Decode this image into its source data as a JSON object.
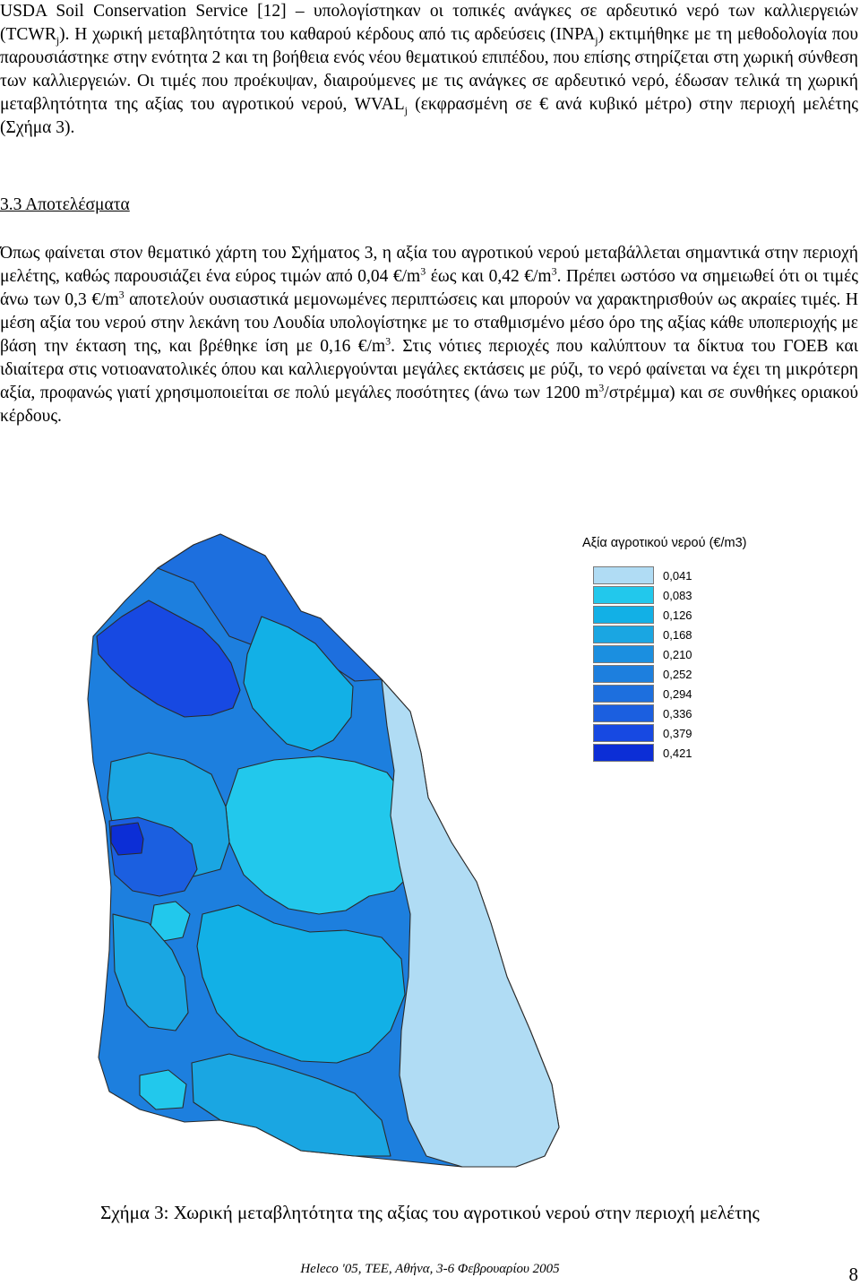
{
  "paragraph1": {
    "a": "USDA Soil Conservation Service [12] – υπολογίστηκαν οι τοπικές ανάγκες σε αρδευτικό νερό των καλλιεργειών (TCWR",
    "a_sub": "j",
    "b": "). Η χωρική μεταβλητότητα του καθαρού κέρδους από τις αρδεύσεις (INPA",
    "b_sub": "j",
    "c": ") εκτιμήθηκε με τη μεθοδολογία που παρουσιάστηκε στην ενότητα 2 και τη βοήθεια ενός νέου θεματικού επιπέδου, που επίσης στηρίζεται στη χωρική σύνθεση των καλλιεργειών. Οι τιμές που προέκυψαν, διαιρούμενες με τις ανάγκες σε αρδευτικό νερό, έδωσαν τελικά τη χωρική μεταβλητότητα της αξίας του αγροτικού νερού, WVAL",
    "c_sub": "j",
    "d": " (εκφρασμένη σε € ανά κυβικό μέτρο) στην περιοχή μελέτης (Σχήμα 3)."
  },
  "heading": "3.3 Αποτελέσματα",
  "paragraph2": {
    "a": "Όπως φαίνεται στον θεματικό χάρτη του Σχήματος 3, η αξία του αγροτικού νερού μεταβάλλεται σημαντικά στην περιοχή μελέτης, καθώς παρουσιάζει ένα εύρος τιμών από 0,04 €/m",
    "a_sup": "3",
    "b": " έως και 0,42 €/m",
    "b_sup": "3",
    "c": ". Πρέπει ωστόσο να σημειωθεί ότι οι τιμές άνω των 0,3 €/m",
    "c_sup": "3",
    "d": " αποτελούν ουσιαστικά μεμονωμένες περιπτώσεις και μπορούν να χαρακτηρισθούν ως ακραίες τιμές. Η μέση αξία του νερού στην λεκάνη του Λουδία υπολογίστηκε με το σταθμισμένο μέσο όρο της αξίας κάθε υποπεριοχής με βάση την έκταση της, και βρέθηκε ίση με 0,16 €/m",
    "d_sup": "3",
    "e": ". Στις νότιες περιοχές που καλύπτουν τα δίκτυα του ΓΟΕΒ και ιδιαίτερα στις νοτιοανατολικές όπου και καλλιεργούνται μεγάλες εκτάσεις με ρύζι, το νερό φαίνεται να έχει τη μικρότερη αξία, προφανώς γιατί χρησιμοποιείται σε πολύ μεγάλες ποσότητες (άνω των 1200 m",
    "e_sup": "3",
    "f": "/στρέμμα) και σε συνθήκες οριακού κέρδους."
  },
  "legend": {
    "title": "Αξία αγροτικού νερού (€/m3)",
    "items": [
      {
        "label": "0,041",
        "color": "#b0dcf4"
      },
      {
        "label": "0,083",
        "color": "#22c8ec"
      },
      {
        "label": "0,126",
        "color": "#12b0e6"
      },
      {
        "label": "0,168",
        "color": "#1aa6e2"
      },
      {
        "label": "0,210",
        "color": "#1b8fe0"
      },
      {
        "label": "0,252",
        "color": "#1d7fde"
      },
      {
        "label": "0,294",
        "color": "#1d6fde"
      },
      {
        "label": "0,336",
        "color": "#1b5fe0"
      },
      {
        "label": "0,379",
        "color": "#1749e2"
      },
      {
        "label": "0,421",
        "color": "#0c2ed6"
      }
    ]
  },
  "caption": "Σχήμα 3: Χωρική μεταβλητότητα της αξίας του αγροτικού νερού στην περιοχή μελέτης",
  "footer": "Heleco '05, ΤΕΕ, Αθήνα, 3-6 Φεβρουαρίου 2005",
  "page_number": "8"
}
